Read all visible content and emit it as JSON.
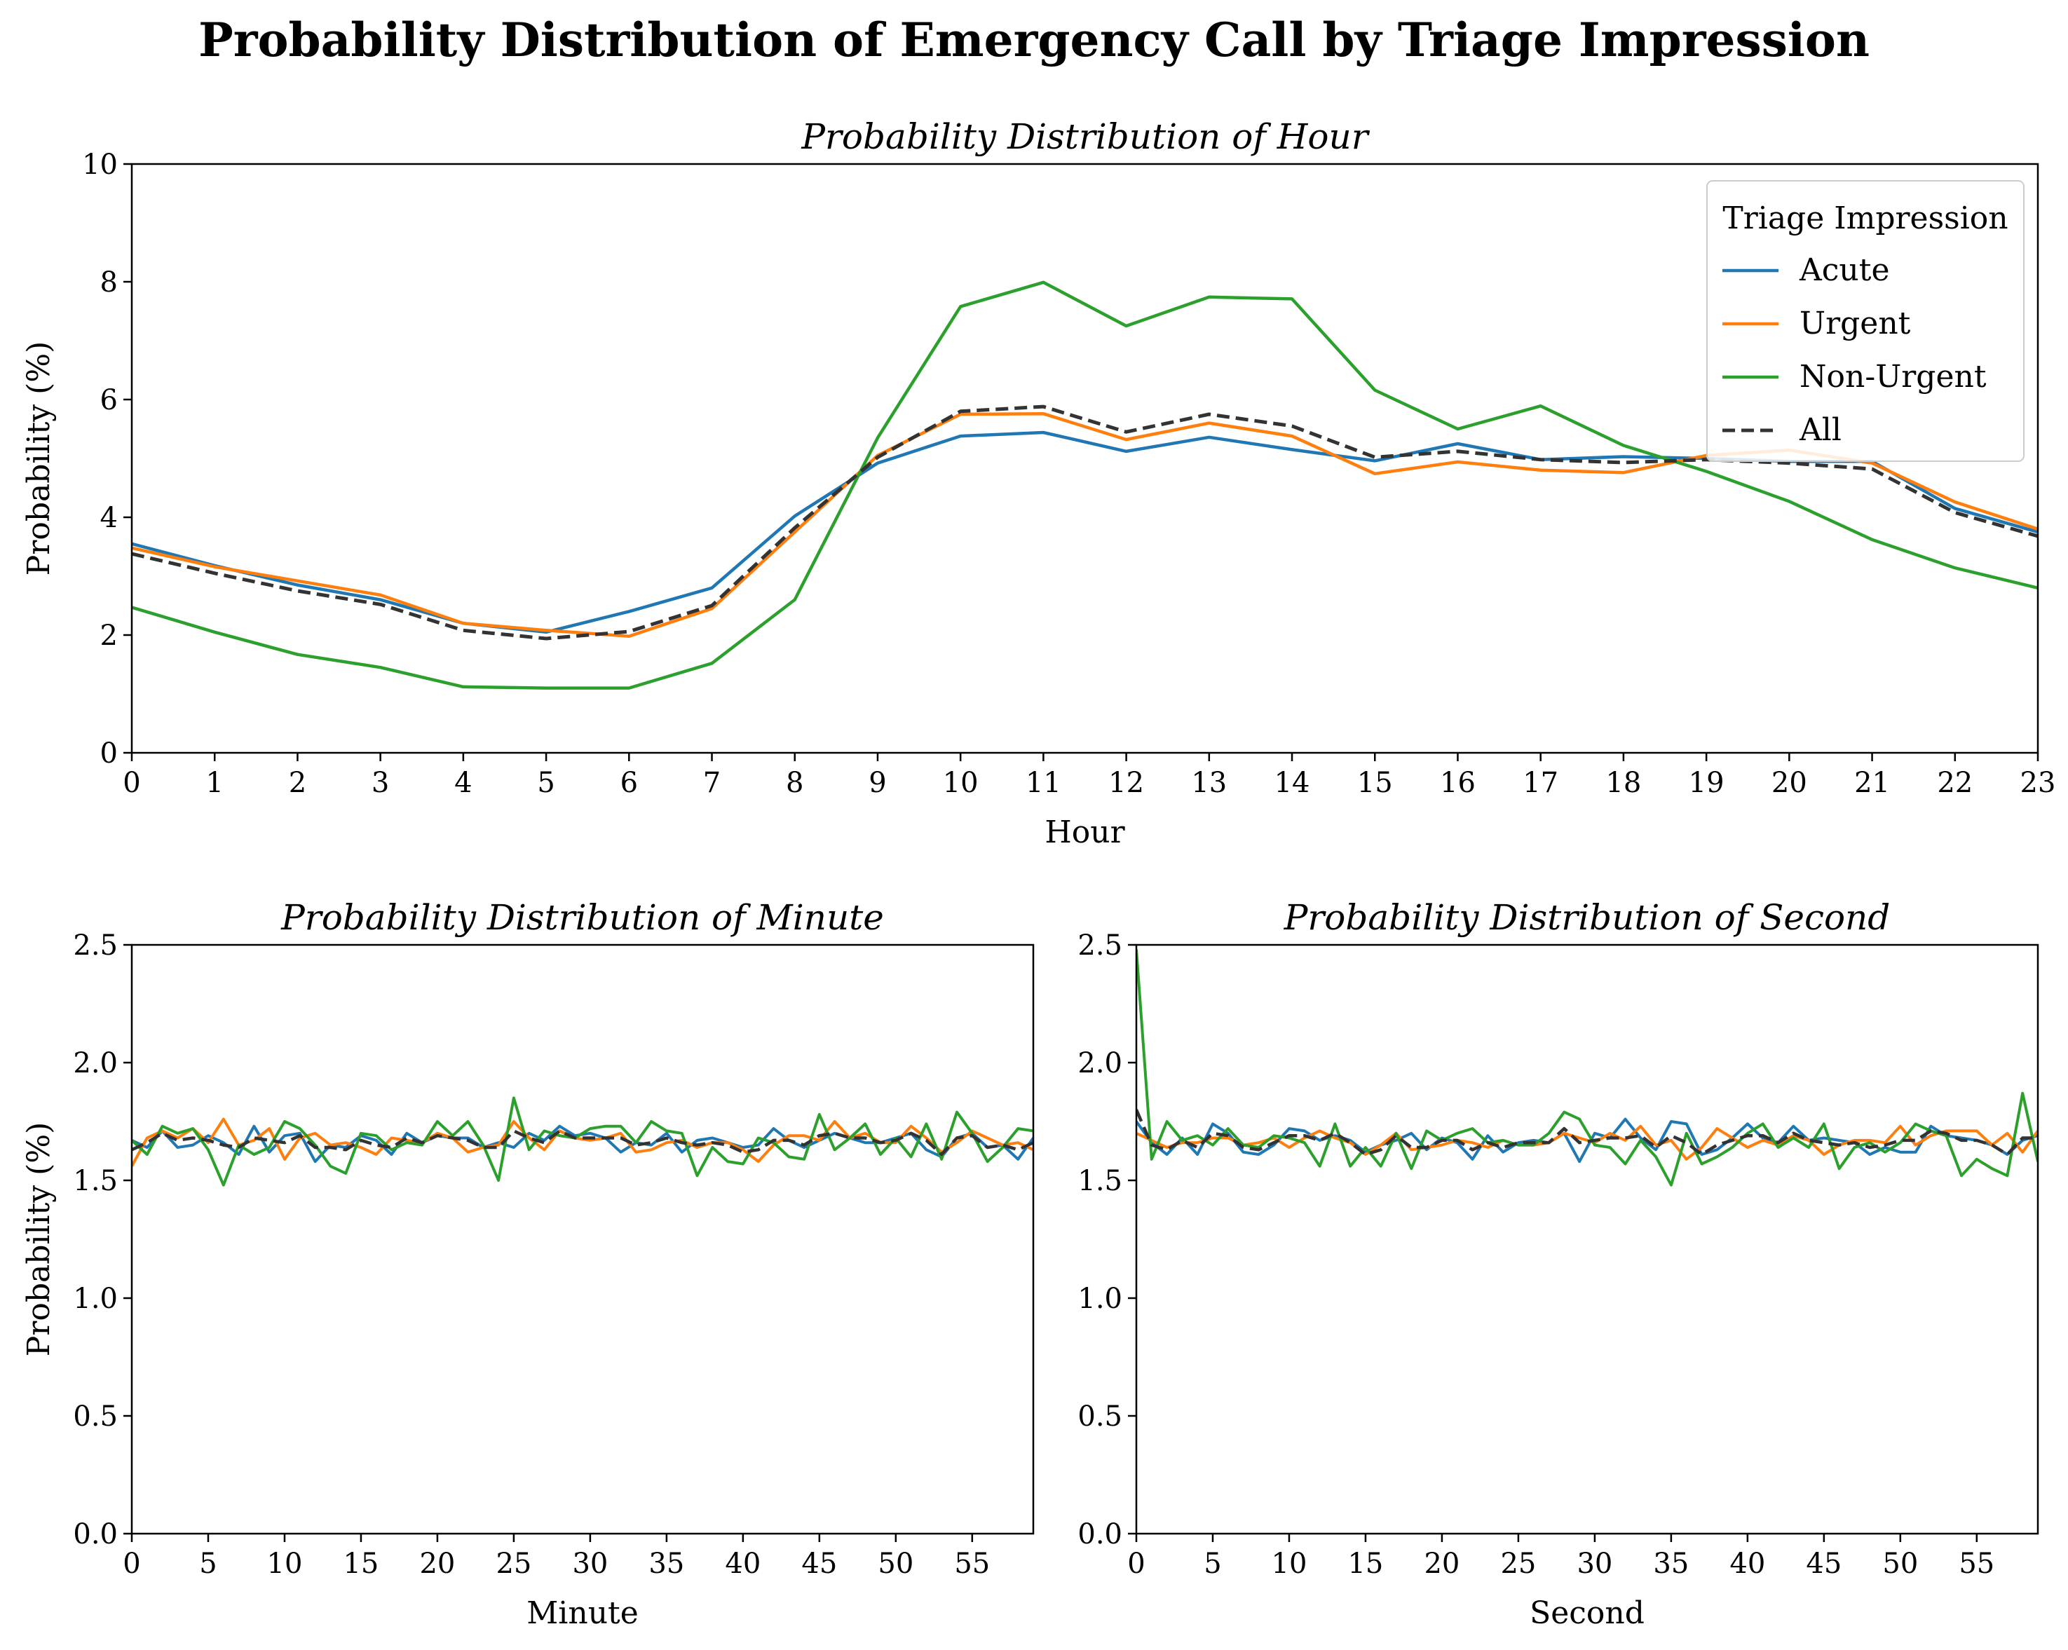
{
  "figure": {
    "title": "Probability Distribution of Emergency Call by Triage Impression",
    "colors": {
      "Acute": "#1f77b4",
      "Urgent": "#ff7f0e",
      "Non-Urgent": "#2ca02c",
      "All": "#333333"
    },
    "legend": {
      "title": "Triage Impression",
      "placement": "upper right (hour panel)",
      "entries": [
        "Acute",
        "Urgent",
        "Non-Urgent",
        "All"
      ]
    }
  },
  "chart_data": [
    {
      "type": "line",
      "title": "Probability Distribution of Hour",
      "xlabel": "Hour",
      "ylabel": "Probability (%)",
      "xlim": [
        0,
        23
      ],
      "ylim": [
        0,
        10
      ],
      "x_ticks": [
        0,
        1,
        2,
        3,
        4,
        5,
        6,
        7,
        8,
        9,
        10,
        11,
        12,
        13,
        14,
        15,
        16,
        17,
        18,
        19,
        20,
        21,
        22,
        23
      ],
      "y_ticks": [
        0,
        2,
        4,
        6,
        8,
        10
      ],
      "x": [
        0,
        1,
        2,
        3,
        4,
        5,
        6,
        7,
        8,
        9,
        10,
        11,
        12,
        13,
        14,
        15,
        16,
        17,
        18,
        19,
        20,
        21,
        22,
        23
      ],
      "series": [
        {
          "name": "Acute",
          "style": "solid",
          "values": [
            3.55,
            3.18,
            2.85,
            2.6,
            2.2,
            2.05,
            2.4,
            2.8,
            4.02,
            4.92,
            5.38,
            5.44,
            5.12,
            5.36,
            5.15,
            4.96,
            5.25,
            4.98,
            5.03,
            5.0,
            4.95,
            4.95,
            4.15,
            3.75
          ]
        },
        {
          "name": "Urgent",
          "style": "solid",
          "values": [
            3.48,
            3.16,
            2.92,
            2.68,
            2.2,
            2.08,
            1.98,
            2.45,
            3.75,
            5.05,
            5.75,
            5.76,
            5.32,
            5.6,
            5.38,
            4.74,
            4.94,
            4.8,
            4.76,
            5.05,
            5.14,
            4.92,
            4.26,
            3.8
          ]
        },
        {
          "name": "Non-Urgent",
          "style": "solid",
          "values": [
            2.47,
            2.05,
            1.67,
            1.45,
            1.12,
            1.1,
            1.1,
            1.52,
            2.6,
            5.35,
            7.58,
            7.99,
            7.25,
            7.74,
            7.71,
            6.16,
            5.5,
            5.89,
            5.22,
            4.78,
            4.27,
            3.62,
            3.14,
            2.8
          ]
        },
        {
          "name": "All",
          "style": "dashed",
          "values": [
            3.38,
            3.05,
            2.75,
            2.52,
            2.08,
            1.94,
            2.06,
            2.5,
            3.82,
            5.02,
            5.8,
            5.88,
            5.45,
            5.75,
            5.55,
            5.02,
            5.12,
            4.98,
            4.93,
            4.98,
            4.92,
            4.82,
            4.08,
            3.68
          ]
        }
      ]
    },
    {
      "type": "line",
      "title": "Probability Distribution of Minute",
      "xlabel": "Minute",
      "ylabel": "Probability (%)",
      "xlim": [
        0,
        59
      ],
      "ylim": [
        0,
        2.5
      ],
      "x_ticks": [
        0,
        5,
        10,
        15,
        20,
        25,
        30,
        35,
        40,
        45,
        50,
        55
      ],
      "y_ticks": [
        "0.0",
        "0.5",
        "1.0",
        "1.5",
        "2.0",
        "2.5"
      ],
      "x": [
        0,
        1,
        2,
        3,
        4,
        5,
        6,
        7,
        8,
        9,
        10,
        11,
        12,
        13,
        14,
        15,
        16,
        17,
        18,
        19,
        20,
        21,
        22,
        23,
        24,
        25,
        26,
        27,
        28,
        29,
        30,
        31,
        32,
        33,
        34,
        35,
        36,
        37,
        38,
        39,
        40,
        41,
        42,
        43,
        44,
        45,
        46,
        47,
        48,
        49,
        50,
        51,
        52,
        53,
        54,
        55,
        56,
        57,
        58,
        59
      ],
      "series": [
        {
          "name": "Acute",
          "style": "solid",
          "values": [
            1.67,
            1.64,
            1.71,
            1.64,
            1.65,
            1.69,
            1.66,
            1.61,
            1.73,
            1.62,
            1.69,
            1.7,
            1.58,
            1.65,
            1.64,
            1.69,
            1.67,
            1.61,
            1.7,
            1.66,
            1.69,
            1.68,
            1.68,
            1.64,
            1.66,
            1.64,
            1.7,
            1.67,
            1.73,
            1.69,
            1.7,
            1.68,
            1.62,
            1.66,
            1.65,
            1.7,
            1.62,
            1.67,
            1.68,
            1.66,
            1.64,
            1.65,
            1.72,
            1.67,
            1.64,
            1.67,
            1.7,
            1.68,
            1.66,
            1.66,
            1.68,
            1.7,
            1.63,
            1.6,
            1.68,
            1.7,
            1.64,
            1.65,
            1.59,
            1.68
          ]
        },
        {
          "name": "Urgent",
          "style": "solid",
          "values": [
            1.56,
            1.68,
            1.71,
            1.68,
            1.72,
            1.66,
            1.76,
            1.65,
            1.67,
            1.72,
            1.59,
            1.68,
            1.7,
            1.65,
            1.66,
            1.64,
            1.61,
            1.68,
            1.67,
            1.66,
            1.7,
            1.68,
            1.62,
            1.64,
            1.65,
            1.75,
            1.68,
            1.63,
            1.71,
            1.68,
            1.67,
            1.68,
            1.7,
            1.62,
            1.63,
            1.66,
            1.67,
            1.64,
            1.66,
            1.66,
            1.63,
            1.58,
            1.65,
            1.69,
            1.69,
            1.67,
            1.75,
            1.68,
            1.7,
            1.66,
            1.66,
            1.73,
            1.68,
            1.62,
            1.66,
            1.71,
            1.68,
            1.65,
            1.66,
            1.63
          ]
        },
        {
          "name": "Non-Urgent",
          "style": "solid",
          "values": [
            1.67,
            1.61,
            1.73,
            1.7,
            1.72,
            1.63,
            1.48,
            1.65,
            1.61,
            1.64,
            1.75,
            1.72,
            1.65,
            1.56,
            1.53,
            1.7,
            1.69,
            1.63,
            1.66,
            1.65,
            1.75,
            1.69,
            1.75,
            1.65,
            1.5,
            1.85,
            1.63,
            1.71,
            1.69,
            1.68,
            1.72,
            1.73,
            1.73,
            1.66,
            1.75,
            1.71,
            1.7,
            1.52,
            1.64,
            1.58,
            1.57,
            1.68,
            1.66,
            1.6,
            1.59,
            1.78,
            1.63,
            1.68,
            1.74,
            1.61,
            1.68,
            1.6,
            1.74,
            1.59,
            1.79,
            1.7,
            1.58,
            1.64,
            1.72,
            1.71
          ]
        },
        {
          "name": "All",
          "style": "dashed",
          "values": [
            1.63,
            1.66,
            1.7,
            1.67,
            1.68,
            1.67,
            1.65,
            1.64,
            1.68,
            1.67,
            1.66,
            1.69,
            1.64,
            1.64,
            1.63,
            1.67,
            1.65,
            1.64,
            1.68,
            1.66,
            1.69,
            1.68,
            1.67,
            1.64,
            1.64,
            1.71,
            1.68,
            1.66,
            1.71,
            1.68,
            1.68,
            1.68,
            1.68,
            1.65,
            1.66,
            1.68,
            1.66,
            1.65,
            1.66,
            1.65,
            1.62,
            1.63,
            1.67,
            1.67,
            1.65,
            1.69,
            1.7,
            1.68,
            1.68,
            1.66,
            1.67,
            1.7,
            1.67,
            1.61,
            1.68,
            1.69,
            1.64,
            1.65,
            1.63,
            1.66
          ]
        }
      ]
    },
    {
      "type": "line",
      "title": "Probability Distribution of Second",
      "xlabel": "Second",
      "ylabel": "",
      "xlim": [
        0,
        59
      ],
      "ylim": [
        0,
        2.5
      ],
      "x_ticks": [
        0,
        5,
        10,
        15,
        20,
        25,
        30,
        35,
        40,
        45,
        50,
        55
      ],
      "y_ticks": [
        "0.0",
        "0.5",
        "1.0",
        "1.5",
        "2.0",
        "2.5"
      ],
      "x": [
        0,
        1,
        2,
        3,
        4,
        5,
        6,
        7,
        8,
        9,
        10,
        11,
        12,
        13,
        14,
        15,
        16,
        17,
        18,
        19,
        20,
        21,
        22,
        23,
        24,
        25,
        26,
        27,
        28,
        29,
        30,
        31,
        32,
        33,
        34,
        35,
        36,
        37,
        38,
        39,
        40,
        41,
        42,
        43,
        44,
        45,
        46,
        47,
        48,
        49,
        50,
        51,
        52,
        53,
        54,
        55,
        56,
        57,
        58,
        59
      ],
      "series": [
        {
          "name": "Acute",
          "style": "solid",
          "values": [
            1.75,
            1.66,
            1.61,
            1.68,
            1.61,
            1.74,
            1.7,
            1.62,
            1.61,
            1.65,
            1.72,
            1.71,
            1.67,
            1.69,
            1.67,
            1.62,
            1.65,
            1.67,
            1.7,
            1.63,
            1.68,
            1.66,
            1.59,
            1.69,
            1.62,
            1.66,
            1.67,
            1.66,
            1.7,
            1.58,
            1.7,
            1.68,
            1.76,
            1.68,
            1.63,
            1.75,
            1.74,
            1.61,
            1.63,
            1.68,
            1.74,
            1.68,
            1.66,
            1.73,
            1.67,
            1.68,
            1.67,
            1.66,
            1.61,
            1.64,
            1.62,
            1.62,
            1.73,
            1.69,
            1.68,
            1.67,
            1.65,
            1.61,
            1.67,
            1.69
          ]
        },
        {
          "name": "Urgent",
          "style": "solid",
          "values": [
            1.7,
            1.67,
            1.64,
            1.66,
            1.66,
            1.68,
            1.68,
            1.65,
            1.66,
            1.68,
            1.64,
            1.68,
            1.71,
            1.68,
            1.66,
            1.61,
            1.65,
            1.7,
            1.63,
            1.64,
            1.65,
            1.67,
            1.66,
            1.64,
            1.67,
            1.65,
            1.65,
            1.66,
            1.7,
            1.68,
            1.66,
            1.7,
            1.67,
            1.73,
            1.65,
            1.67,
            1.59,
            1.64,
            1.72,
            1.68,
            1.64,
            1.67,
            1.65,
            1.69,
            1.67,
            1.61,
            1.65,
            1.67,
            1.67,
            1.66,
            1.73,
            1.65,
            1.69,
            1.71,
            1.71,
            1.71,
            1.65,
            1.7,
            1.62,
            1.71
          ]
        },
        {
          "name": "Non-Urgent",
          "style": "solid",
          "values": [
            2.48,
            1.59,
            1.75,
            1.67,
            1.69,
            1.65,
            1.72,
            1.65,
            1.64,
            1.69,
            1.68,
            1.66,
            1.56,
            1.74,
            1.56,
            1.64,
            1.56,
            1.7,
            1.55,
            1.71,
            1.67,
            1.7,
            1.72,
            1.66,
            1.67,
            1.65,
            1.65,
            1.7,
            1.79,
            1.76,
            1.65,
            1.64,
            1.57,
            1.67,
            1.6,
            1.48,
            1.7,
            1.57,
            1.6,
            1.64,
            1.7,
            1.74,
            1.64,
            1.68,
            1.64,
            1.74,
            1.55,
            1.64,
            1.66,
            1.62,
            1.66,
            1.74,
            1.71,
            1.69,
            1.52,
            1.59,
            1.55,
            1.52,
            1.87,
            1.58
          ]
        },
        {
          "name": "All",
          "style": "dashed",
          "values": [
            1.8,
            1.65,
            1.63,
            1.67,
            1.64,
            1.7,
            1.69,
            1.64,
            1.63,
            1.66,
            1.69,
            1.69,
            1.67,
            1.7,
            1.66,
            1.61,
            1.63,
            1.69,
            1.64,
            1.64,
            1.67,
            1.67,
            1.63,
            1.66,
            1.64,
            1.66,
            1.66,
            1.66,
            1.72,
            1.66,
            1.67,
            1.68,
            1.68,
            1.69,
            1.64,
            1.69,
            1.66,
            1.61,
            1.65,
            1.67,
            1.69,
            1.69,
            1.66,
            1.7,
            1.67,
            1.66,
            1.65,
            1.66,
            1.64,
            1.65,
            1.67,
            1.67,
            1.71,
            1.7,
            1.67,
            1.67,
            1.65,
            1.61,
            1.68,
            1.68
          ]
        }
      ]
    }
  ]
}
